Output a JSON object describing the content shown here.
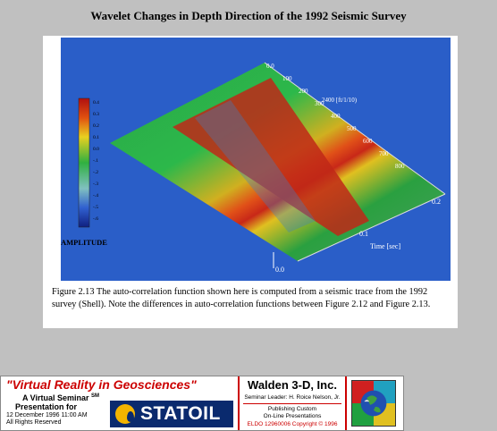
{
  "title": "Wavelet Changes in Depth Direction of the 1992 Seismic Survey",
  "figure": {
    "amplitude_label": "AMPLITUDE",
    "colorbar_ticks": [
      "0.4",
      "0.3",
      "0.2",
      "0.1",
      "0.0",
      "-.1",
      "-.2",
      "-.3",
      "-.4",
      "-.5",
      "-.6"
    ],
    "time_axis_label": "Time [sec]",
    "time_ticks": [
      "0.0",
      "0.1",
      "0.2"
    ],
    "depth_axis_label": "2400 [ft/1/10)",
    "depth_ticks": [
      "0.0",
      "100",
      "200",
      "300",
      "400",
      "500",
      "600",
      "700",
      "800"
    ]
  },
  "caption": "Figure 2.13  The auto-correlation function shown here is computed from a seismic trace from the 1992 survey (Shell).  Note the differences in auto-correlation functions between Figure 2.12 and Figure 2.13.",
  "banner": {
    "title": "\"Virtual Reality in Geosciences\"",
    "subtitle": "A Virtual Seminar",
    "sm": "SM",
    "presentation": "Presentation for",
    "date_line": "12 December 1996  11:00 AM",
    "rights": "All Rights Reserved",
    "statoil": "STATOIL",
    "company": "Walden 3-D, Inc.",
    "leader": "Seminar Leader: H. Roice Nelson, Jr.",
    "pub1": "Publishing Custom",
    "pub2": "On-Line Presentations",
    "eldo": "ELDO 12960006 Copyright © 1996"
  }
}
